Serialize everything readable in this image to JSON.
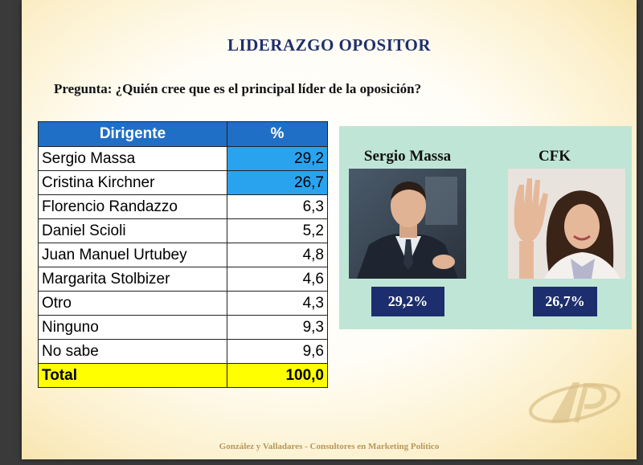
{
  "title": "LIDERAZGO OPOSITOR",
  "question": "Pregunta: ¿Quién cree que es el principal líder de la oposición?",
  "table": {
    "headers": [
      "Dirigente",
      "%"
    ],
    "rows": [
      {
        "name": "Sergio Massa",
        "value": "29,2"
      },
      {
        "name": "Cristina Kirchner",
        "value": "26,7"
      },
      {
        "name": "Florencio Randazzo",
        "value": "6,3"
      },
      {
        "name": "Daniel Scioli",
        "value": "5,2"
      },
      {
        "name": "Juan Manuel Urtubey",
        "value": "4,8"
      },
      {
        "name": "Margarita Stolbizer",
        "value": "4,6"
      },
      {
        "name": "Otro",
        "value": "4,3"
      },
      {
        "name": "Ninguno",
        "value": "9,3"
      },
      {
        "name": "No sabe",
        "value": "9,6"
      }
    ],
    "total": {
      "name": "Total",
      "value": "100,0"
    }
  },
  "panel": {
    "left": {
      "name": "Sergio Massa",
      "badge": "29,2%"
    },
    "right": {
      "name": "CFK",
      "badge": "26,7%"
    }
  },
  "footer": "González y Valladares - Consultores en Marketing Político",
  "colors": {
    "header_blue": "#1f6fc6",
    "highlight_blue": "#2aa3ef",
    "total_yellow": "#ffff00",
    "panel_green": "#bfe5d6",
    "badge_navy": "#1d2e6e",
    "title_navy": "#1f2f6b"
  }
}
